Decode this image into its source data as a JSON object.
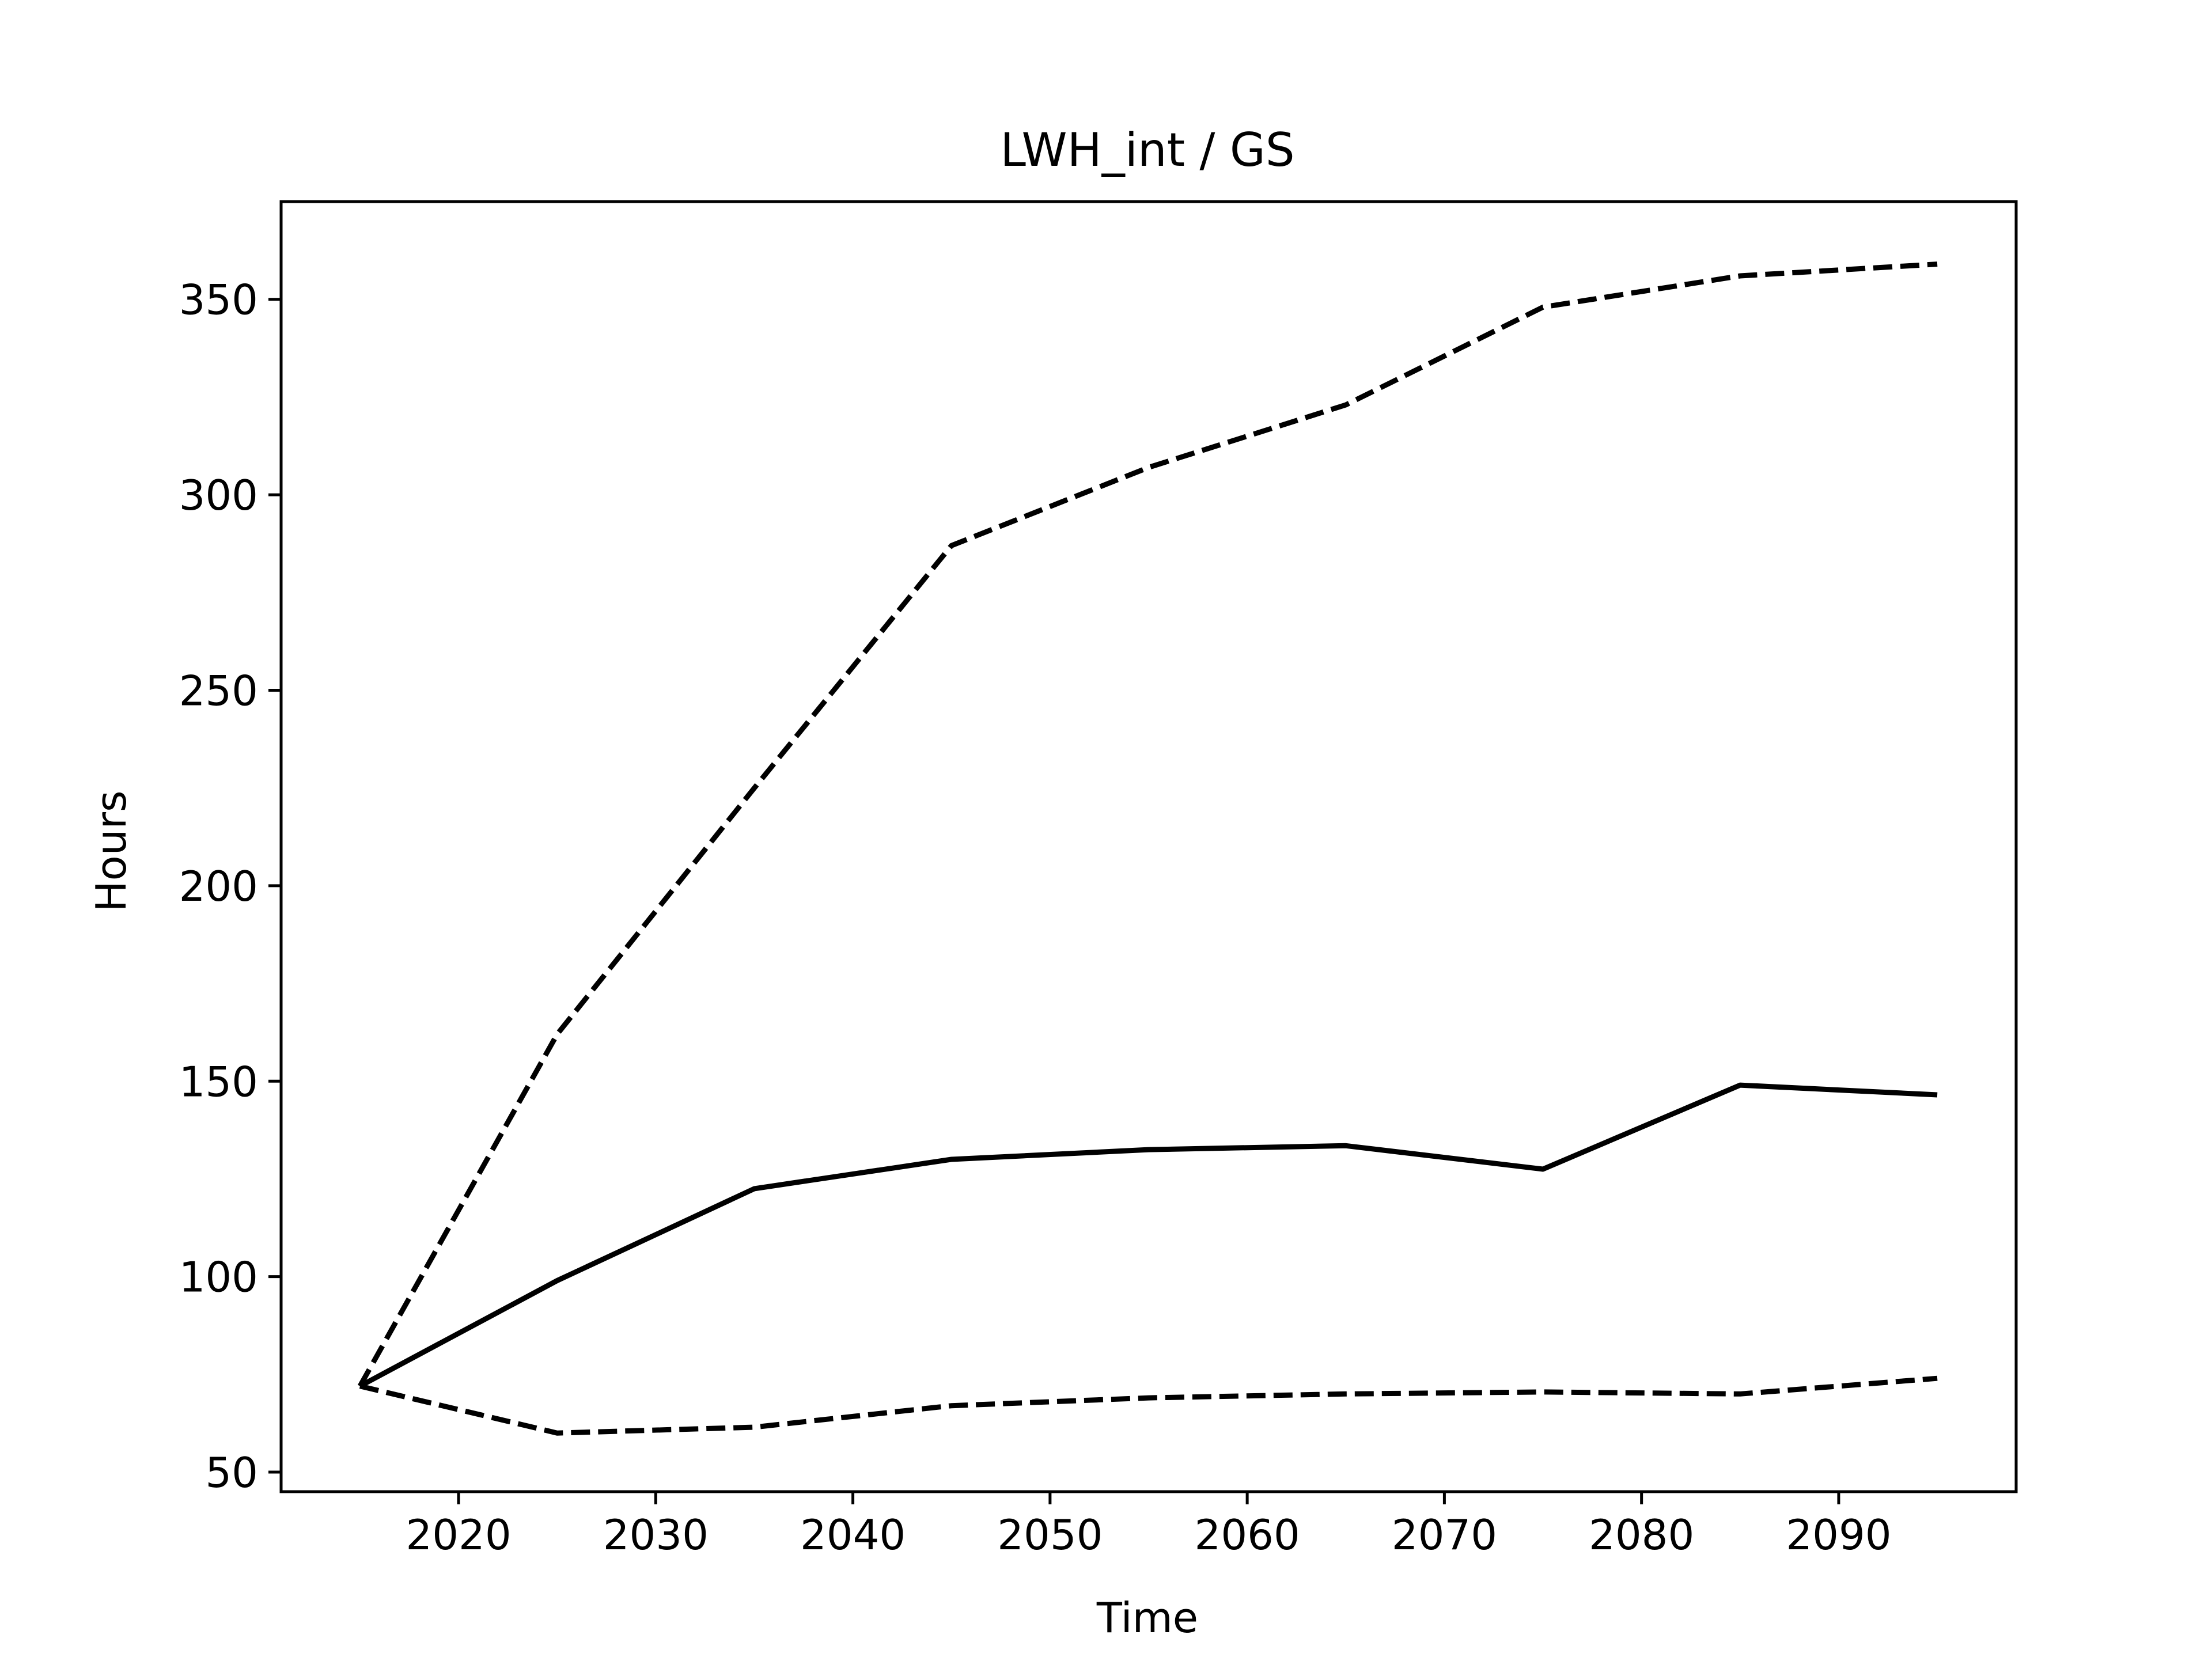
{
  "chart_data": {
    "type": "line",
    "title": "LWH_int / GS",
    "xlabel": "Time",
    "ylabel": "Hours",
    "xlim": [
      2011,
      2099
    ],
    "ylim": [
      45,
      375
    ],
    "xticks": [
      2020,
      2030,
      2040,
      2050,
      2060,
      2070,
      2080,
      2090
    ],
    "yticks": [
      50,
      100,
      150,
      200,
      250,
      300,
      350
    ],
    "grid": false,
    "legend": "none",
    "x": [
      2015,
      2025,
      2035,
      2045,
      2055,
      2065,
      2075,
      2085,
      2095
    ],
    "series": [
      {
        "style": "dashed",
        "color": "#000000",
        "values": [
          72,
          162,
          225,
          287,
          307,
          323,
          348,
          356,
          359
        ]
      },
      {
        "style": "solid",
        "color": "#000000",
        "values": [
          72,
          99,
          122.5,
          130,
          132.5,
          133.5,
          127.5,
          149,
          146.5
        ]
      },
      {
        "style": "dashed",
        "color": "#000000",
        "values": [
          72,
          60,
          61.5,
          67,
          69,
          70,
          70.5,
          70,
          74
        ]
      }
    ]
  }
}
